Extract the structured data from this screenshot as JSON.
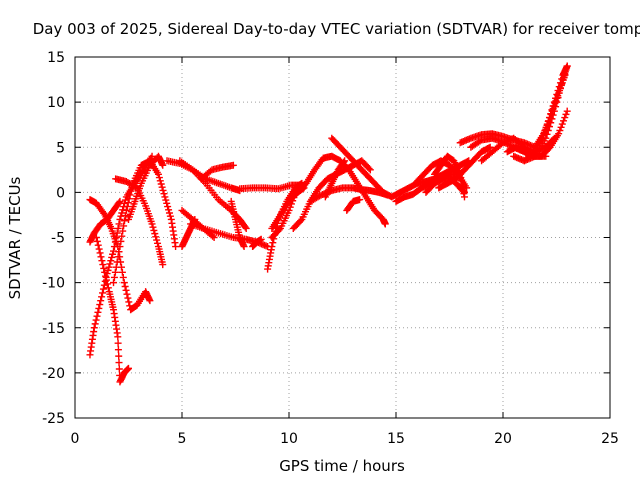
{
  "chart_data": {
    "type": "scatter",
    "title": "Day 003 of 2025, Sidereal Day-to-day VTEC variation (SDTVAR) for receiver tomp",
    "xlabel": "GPS time / hours",
    "ylabel": "SDTVAR / TECUs",
    "xlim": [
      0,
      25
    ],
    "ylim": [
      -25,
      15
    ],
    "xticks": [
      0,
      5,
      10,
      15,
      20,
      25
    ],
    "yticks": [
      -25,
      -20,
      -15,
      -10,
      -5,
      0,
      5,
      10,
      15
    ],
    "grid": true,
    "marker": "+",
    "color": "#ff0000",
    "series": [
      {
        "points": [
          [
            0.7,
            -5.5
          ],
          [
            0.9,
            -4.5
          ],
          [
            1.2,
            -3.5
          ],
          [
            1.5,
            -3
          ],
          [
            1.8,
            -2
          ],
          [
            2.1,
            -1
          ]
        ]
      },
      {
        "points": [
          [
            0.7,
            -18
          ],
          [
            0.9,
            -15
          ],
          [
            1.2,
            -12
          ],
          [
            1.5,
            -9
          ],
          [
            1.8,
            -6.5
          ],
          [
            2.1,
            -3
          ],
          [
            2.4,
            -0.5
          ],
          [
            2.8,
            1
          ],
          [
            3.2,
            2.5
          ],
          [
            3.6,
            4
          ]
        ]
      },
      {
        "points": [
          [
            0.7,
            -0.8
          ],
          [
            1.0,
            -1.2
          ],
          [
            1.4,
            -2.5
          ],
          [
            1.7,
            -4
          ],
          [
            2.0,
            -6
          ],
          [
            2.3,
            -10
          ],
          [
            2.6,
            -13
          ],
          [
            2.9,
            -12.5
          ],
          [
            3.3,
            -11
          ],
          [
            3.5,
            -12
          ]
        ]
      },
      {
        "points": [
          [
            1.0,
            -5
          ],
          [
            1.3,
            -8
          ],
          [
            1.6,
            -11
          ],
          [
            1.8,
            -13
          ],
          [
            2.0,
            -16
          ],
          [
            2.1,
            -21
          ],
          [
            2.3,
            -20
          ],
          [
            2.5,
            -19.5
          ]
        ]
      },
      {
        "points": [
          [
            1.8,
            -10
          ],
          [
            2.1,
            -6
          ],
          [
            2.4,
            -2
          ],
          [
            2.7,
            1
          ],
          [
            3.1,
            3
          ],
          [
            3.5,
            3.5
          ],
          [
            3.9,
            2
          ],
          [
            4.2,
            -0.5
          ],
          [
            4.5,
            -3
          ],
          [
            4.7,
            -6
          ]
        ]
      },
      {
        "points": [
          [
            1.9,
            1.5
          ],
          [
            2.4,
            1.2
          ],
          [
            2.9,
            0.5
          ],
          [
            3.3,
            -1.5
          ],
          [
            3.6,
            -3.5
          ],
          [
            3.9,
            -6
          ],
          [
            4.1,
            -8
          ]
        ]
      },
      {
        "points": [
          [
            2.5,
            -3
          ],
          [
            2.8,
            -1
          ],
          [
            3.1,
            1
          ],
          [
            3.5,
            3
          ],
          [
            3.9,
            4
          ],
          [
            4.1,
            3
          ]
        ]
      },
      {
        "points": [
          [
            4.3,
            3.5
          ],
          [
            4.9,
            3.2
          ],
          [
            5.5,
            2.5
          ],
          [
            6.1,
            1.5
          ],
          [
            6.7,
            1.0
          ],
          [
            7.3,
            0.5
          ],
          [
            7.7,
            0.2
          ]
        ]
      },
      {
        "points": [
          [
            4.9,
            3.5
          ],
          [
            5.5,
            2.5
          ],
          [
            6.1,
            1
          ],
          [
            6.7,
            -0.8
          ],
          [
            7.3,
            -2
          ],
          [
            7.7,
            -3
          ],
          [
            8.0,
            -4
          ]
        ]
      },
      {
        "points": [
          [
            5.0,
            -6
          ],
          [
            5.2,
            -5
          ],
          [
            5.4,
            -4
          ],
          [
            5.6,
            -3
          ]
        ]
      },
      {
        "points": [
          [
            5.9,
            1.5
          ],
          [
            6.4,
            2.5
          ],
          [
            6.9,
            2.8
          ],
          [
            7.4,
            3
          ]
        ]
      },
      {
        "points": [
          [
            5.0,
            -2
          ],
          [
            5.5,
            -3
          ],
          [
            6.0,
            -4
          ],
          [
            6.5,
            -5
          ]
        ]
      },
      {
        "points": [
          [
            5.4,
            -3.5
          ],
          [
            6.0,
            -4
          ],
          [
            6.7,
            -4.5
          ],
          [
            7.4,
            -5
          ],
          [
            8.0,
            -5.2
          ],
          [
            8.5,
            -5.5
          ],
          [
            9.0,
            -6
          ]
        ]
      },
      {
        "points": [
          [
            7.7,
            0.4
          ],
          [
            8.3,
            0.5
          ],
          [
            8.9,
            0.5
          ],
          [
            9.5,
            0.4
          ],
          [
            10.1,
            0.8
          ],
          [
            10.6,
            0.8
          ]
        ]
      },
      {
        "points": [
          [
            7.3,
            -1
          ],
          [
            7.5,
            -3
          ],
          [
            7.7,
            -5
          ],
          [
            7.9,
            -6
          ]
        ]
      },
      {
        "points": [
          [
            8.3,
            -6
          ],
          [
            8.5,
            -5.5
          ],
          [
            8.7,
            -5.2
          ]
        ]
      },
      {
        "points": [
          [
            9.0,
            -8.5
          ],
          [
            9.2,
            -6
          ],
          [
            9.5,
            -3
          ],
          [
            9.9,
            -1
          ],
          [
            10.3,
            0.5
          ],
          [
            10.6,
            1
          ]
        ]
      },
      {
        "points": [
          [
            9.2,
            -5
          ],
          [
            9.6,
            -4
          ],
          [
            10.0,
            -2
          ],
          [
            10.4,
            0.5
          ],
          [
            10.7,
            0.8
          ]
        ]
      },
      {
        "points": [
          [
            9.2,
            -4
          ],
          [
            9.6,
            -2.5
          ],
          [
            10.0,
            -1
          ],
          [
            10.4,
            0
          ],
          [
            10.7,
            0.5
          ]
        ]
      },
      {
        "points": [
          [
            10.2,
            -4
          ],
          [
            10.6,
            -3
          ],
          [
            11.0,
            -1
          ],
          [
            11.4,
            0.5
          ],
          [
            11.8,
            1.5
          ],
          [
            12.2,
            2
          ],
          [
            12.6,
            2.5
          ],
          [
            13.0,
            3
          ],
          [
            13.4,
            3.5
          ],
          [
            13.8,
            2.5
          ]
        ]
      },
      {
        "points": [
          [
            10.4,
            0
          ],
          [
            10.8,
            1
          ],
          [
            11.2,
            2.5
          ],
          [
            11.6,
            3.8
          ],
          [
            12.0,
            4
          ],
          [
            12.4,
            3.5
          ],
          [
            12.8,
            2.5
          ],
          [
            13.2,
            1
          ],
          [
            13.6,
            -0.5
          ],
          [
            14.0,
            -2
          ],
          [
            14.4,
            -3
          ],
          [
            14.5,
            -3.5
          ]
        ]
      },
      {
        "points": [
          [
            12.0,
            6
          ],
          [
            12.4,
            5
          ],
          [
            12.8,
            4
          ],
          [
            13.2,
            3
          ],
          [
            13.6,
            2
          ],
          [
            14.0,
            1
          ],
          [
            14.4,
            0
          ],
          [
            14.8,
            -0.5
          ],
          [
            15.2,
            0
          ]
        ]
      },
      {
        "points": [
          [
            11.0,
            -1
          ],
          [
            11.5,
            -0.3
          ],
          [
            12.0,
            0.2
          ],
          [
            12.5,
            0.5
          ],
          [
            13.0,
            0.5
          ],
          [
            13.4,
            0.3
          ],
          [
            13.8,
            0.2
          ],
          [
            14.2,
            0
          ],
          [
            14.6,
            -0.3
          ]
        ]
      },
      {
        "points": [
          [
            11.7,
            -0.5
          ],
          [
            12.0,
            1
          ],
          [
            12.3,
            2.5
          ],
          [
            12.6,
            3.5
          ]
        ]
      },
      {
        "points": [
          [
            12.7,
            -2
          ],
          [
            13.0,
            -1
          ],
          [
            13.3,
            -0.8
          ]
        ]
      },
      {
        "points": [
          [
            15.0,
            -1
          ],
          [
            15.4,
            -0.5
          ],
          [
            15.8,
            -0.2
          ],
          [
            16.2,
            0.5
          ],
          [
            16.6,
            1
          ],
          [
            17.0,
            1.5
          ],
          [
            17.4,
            2
          ],
          [
            17.8,
            2
          ]
        ]
      },
      {
        "points": [
          [
            15.2,
            0
          ],
          [
            15.6,
            0.5
          ],
          [
            16.0,
            1
          ],
          [
            16.4,
            1.2
          ],
          [
            16.8,
            1.5
          ],
          [
            17.2,
            2
          ],
          [
            17.6,
            2.5
          ],
          [
            18.0,
            3
          ],
          [
            18.4,
            3.5
          ]
        ]
      },
      {
        "points": [
          [
            15.9,
            1
          ],
          [
            16.3,
            2
          ],
          [
            16.7,
            3
          ],
          [
            17.1,
            3.5
          ],
          [
            17.5,
            3
          ],
          [
            17.9,
            2
          ],
          [
            18.3,
            0.5
          ]
        ]
      },
      {
        "points": [
          [
            16.4,
            0
          ],
          [
            16.8,
            1
          ],
          [
            17.2,
            1.5
          ],
          [
            17.6,
            1.5
          ],
          [
            18.0,
            0.5
          ],
          [
            18.2,
            0
          ]
        ]
      },
      {
        "points": [
          [
            16.8,
            2
          ],
          [
            17.1,
            3
          ],
          [
            17.4,
            4
          ],
          [
            17.7,
            3.5
          ],
          [
            18.0,
            2
          ],
          [
            18.2,
            -0.5
          ]
        ]
      },
      {
        "points": [
          [
            17.0,
            0.5
          ],
          [
            17.4,
            1
          ],
          [
            17.8,
            1.5
          ],
          [
            18.2,
            2.5
          ],
          [
            18.6,
            3.5
          ],
          [
            19.0,
            4.5
          ],
          [
            19.4,
            5
          ]
        ]
      },
      {
        "points": [
          [
            18.0,
            5.5
          ],
          [
            18.5,
            6
          ],
          [
            19.0,
            6.4
          ],
          [
            19.5,
            6.5
          ],
          [
            20.0,
            6.2
          ],
          [
            20.5,
            5.8
          ],
          [
            21.0,
            5.5
          ],
          [
            21.5,
            5
          ]
        ]
      },
      {
        "points": [
          [
            18.5,
            5
          ],
          [
            19.0,
            5.8
          ],
          [
            19.5,
            6
          ],
          [
            20.0,
            5.6
          ],
          [
            20.5,
            5
          ],
          [
            21.0,
            4.5
          ],
          [
            21.5,
            4
          ],
          [
            22.0,
            4
          ]
        ]
      },
      {
        "points": [
          [
            19.0,
            3.5
          ],
          [
            19.5,
            4.5
          ],
          [
            20.0,
            5.5
          ],
          [
            20.5,
            6
          ],
          [
            21.0,
            5
          ],
          [
            21.5,
            4.5
          ],
          [
            22.0,
            5
          ],
          [
            22.4,
            6
          ]
        ]
      },
      {
        "points": [
          [
            20.2,
            4.5
          ],
          [
            20.6,
            5
          ],
          [
            21.0,
            4.5
          ],
          [
            21.4,
            4
          ],
          [
            21.8,
            4
          ],
          [
            22.2,
            5
          ],
          [
            22.6,
            6.5
          ],
          [
            23.0,
            9
          ]
        ]
      },
      {
        "points": [
          [
            20.5,
            4
          ],
          [
            21.0,
            3.5
          ],
          [
            21.5,
            4
          ],
          [
            22.0,
            6
          ],
          [
            22.4,
            9
          ],
          [
            22.8,
            12.5
          ],
          [
            23.0,
            14
          ]
        ]
      },
      {
        "points": [
          [
            21.0,
            3.5
          ],
          [
            21.5,
            4.5
          ],
          [
            22.0,
            7
          ],
          [
            22.4,
            10
          ],
          [
            22.8,
            13
          ],
          [
            23.0,
            14
          ]
        ]
      },
      {
        "points": [
          [
            21.5,
            5
          ],
          [
            21.9,
            6.5
          ],
          [
            22.3,
            9
          ],
          [
            22.6,
            11
          ],
          [
            22.9,
            13
          ]
        ]
      }
    ]
  }
}
